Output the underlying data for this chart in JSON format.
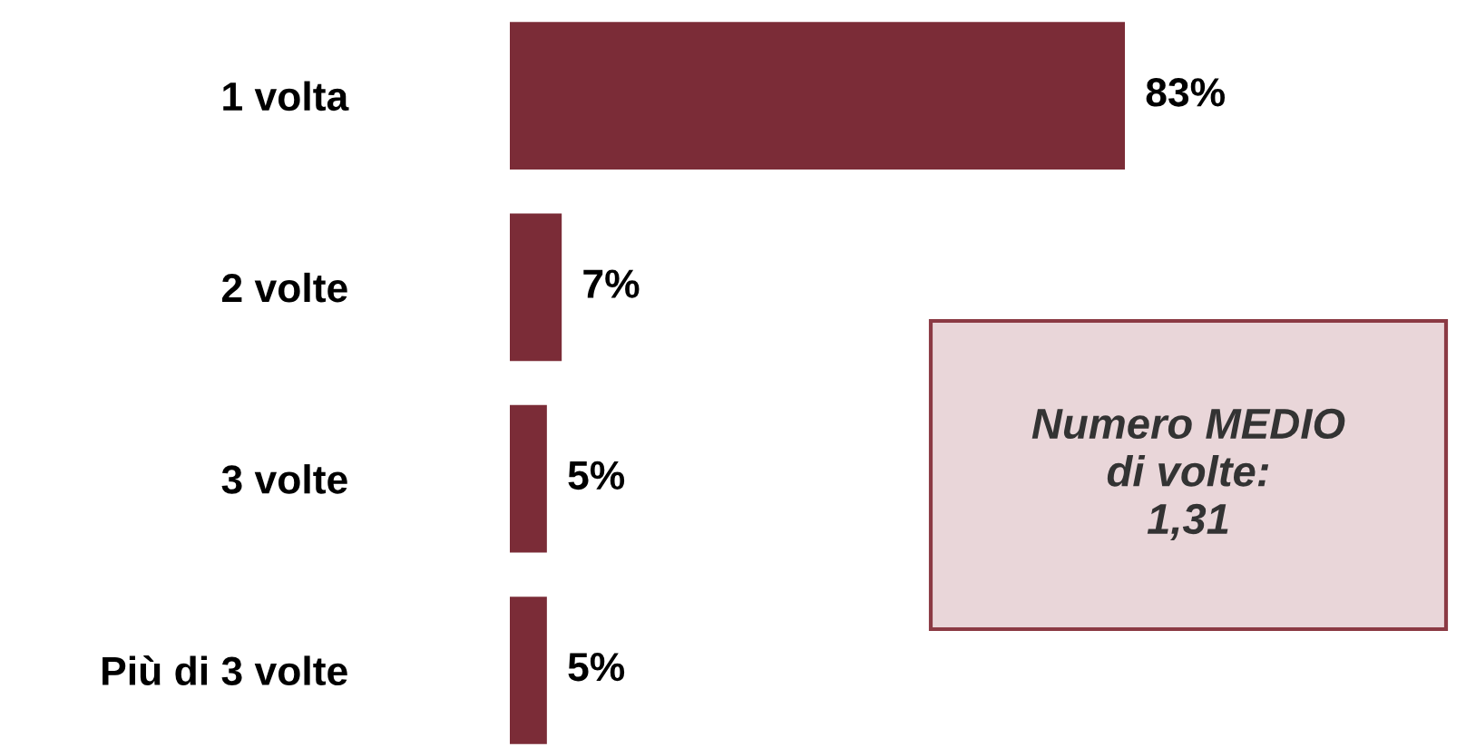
{
  "chart_data": {
    "type": "bar",
    "orientation": "horizontal",
    "categories": [
      "1 volta",
      "2 volte",
      "3 volte",
      "Più di 3 volte"
    ],
    "values": [
      83,
      7,
      5,
      5
    ],
    "value_labels": [
      "83%",
      "7%",
      "5%",
      "5%"
    ],
    "color": "#7b2c37",
    "tick_labels": "y",
    "annotations": [
      "Numero MEDIO\ndi volte:\n1,31"
    ]
  }
}
